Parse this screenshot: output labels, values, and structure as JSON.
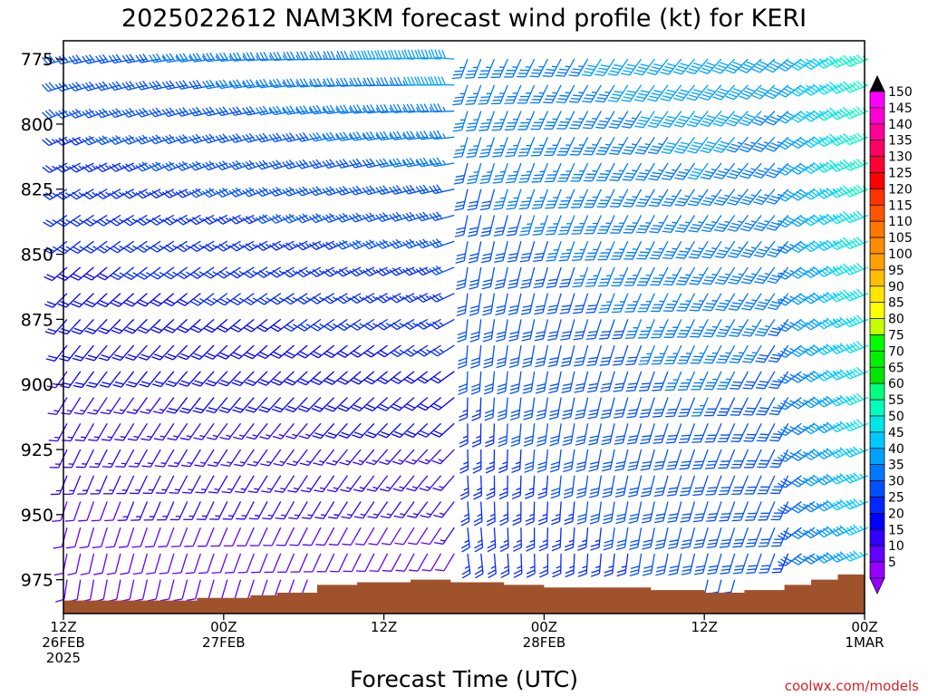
{
  "chart_data": {
    "type": "wind_profile",
    "title": "2025022612 NAM3KM forecast wind profile (kt) for KERI",
    "xlabel": "Forecast Time (UTC)",
    "ylabel": "",
    "credit": "coolwx.com/models",
    "y_axis": {
      "ticks": [
        "775",
        "800",
        "825",
        "850",
        "875",
        "900",
        "925",
        "950",
        "975"
      ],
      "range": [
        768,
        988
      ],
      "inverted": true
    },
    "x_axis": {
      "range_hours": [
        0,
        60
      ],
      "ticks": [
        {
          "line1": "12Z",
          "line2": "26FEB",
          "line3": "2025"
        },
        {
          "line1": "00Z",
          "line2": "27FEB",
          "line3": ""
        },
        {
          "line1": "12Z",
          "line2": "",
          "line3": ""
        },
        {
          "line1": "00Z",
          "line2": "28FEB",
          "line3": ""
        },
        {
          "line1": "12Z",
          "line2": "",
          "line3": ""
        },
        {
          "line1": "00Z",
          "line2": "1MAR",
          "line3": ""
        }
      ]
    },
    "colorbar": {
      "labels": [
        "150",
        "145",
        "140",
        "135",
        "130",
        "125",
        "120",
        "115",
        "110",
        "105",
        "100",
        "95",
        "90",
        "85",
        "80",
        "75",
        "70",
        "65",
        "60",
        "55",
        "50",
        "45",
        "40",
        "35",
        "30",
        "25",
        "20",
        "15",
        "10",
        "5"
      ],
      "colors": [
        "#ff00ff",
        "#ff00d2",
        "#ff0096",
        "#ff0064",
        "#ff0032",
        "#ff0000",
        "#ff3200",
        "#ff5500",
        "#ff7800",
        "#ff8c00",
        "#ffa000",
        "#ffbe00",
        "#ffe600",
        "#ffff00",
        "#c8ff00",
        "#00ff00",
        "#00f000",
        "#00e600",
        "#00ff7f",
        "#00ffbe",
        "#00e6e6",
        "#00c8ff",
        "#00a0ff",
        "#0078ff",
        "#0050ff",
        "#0028ff",
        "#0000ff",
        "#3200ff",
        "#6400ff",
        "#9600ff"
      ]
    },
    "surface_pressure": [
      {
        "h": 0,
        "p": 983
      },
      {
        "h": 7,
        "p": 983
      },
      {
        "h": 10,
        "p": 982
      },
      {
        "h": 12,
        "p": 982
      },
      {
        "h": 14,
        "p": 981
      },
      {
        "h": 16,
        "p": 980
      },
      {
        "h": 19,
        "p": 977
      },
      {
        "h": 22,
        "p": 976
      },
      {
        "h": 26,
        "p": 975
      },
      {
        "h": 29,
        "p": 976
      },
      {
        "h": 33,
        "p": 977
      },
      {
        "h": 36,
        "p": 978
      },
      {
        "h": 40,
        "p": 978
      },
      {
        "h": 44,
        "p": 979
      },
      {
        "h": 48,
        "p": 980
      },
      {
        "h": 51,
        "p": 979
      },
      {
        "h": 54,
        "p": 977
      },
      {
        "h": 56,
        "p": 975
      },
      {
        "h": 58,
        "p": 973
      },
      {
        "h": 60,
        "p": 972
      }
    ],
    "ground_color": "#a0522d",
    "barb_grid": {
      "hour_step": 1,
      "pressure_levels": "775-990 every 10"
    }
  }
}
